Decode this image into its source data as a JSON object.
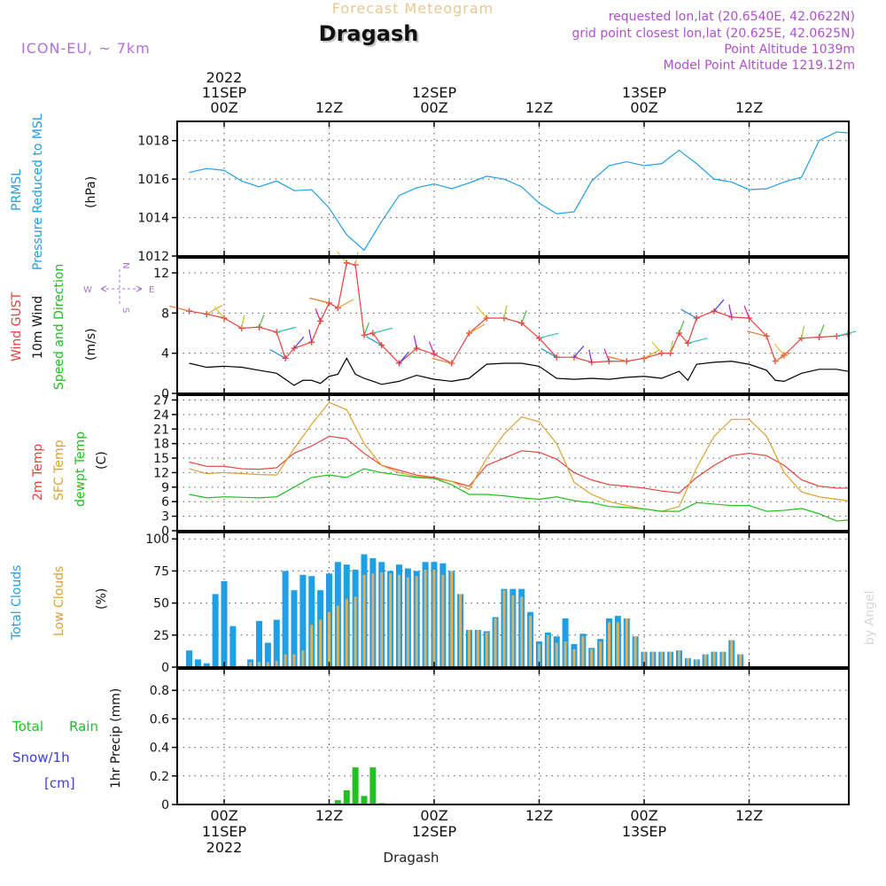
{
  "header": {
    "subtitle": "Forecast Meteogram",
    "location": "Dragash",
    "model": "ICON-EU, ~ 7km",
    "requested": "requested lon,lat (20.6540E, 42.0622N)",
    "grid": "grid point closest lon,lat (20.625E, 42.0625N)",
    "altitude": "Point Altitude 1039m",
    "model_altitude": "Model Point Altitude 1219.12m",
    "footer": "Dragash",
    "watermark": "by Angel"
  },
  "time_axis": {
    "top": [
      [
        "2022",
        "11SEP",
        "00Z"
      ],
      [
        "12Z"
      ],
      [
        "12SEP",
        "00Z"
      ],
      [
        "12Z"
      ],
      [
        "13SEP",
        "00Z"
      ],
      [
        "12Z"
      ]
    ],
    "bottom": [
      [
        "00Z",
        "11SEP",
        "2022"
      ],
      [
        "12Z"
      ],
      [
        "00Z",
        "12SEP"
      ],
      [
        "12Z"
      ],
      [
        "00Z",
        "13SEP"
      ],
      [
        "12Z"
      ]
    ],
    "tick_hours": [
      0,
      12,
      24,
      36,
      48,
      60
    ]
  },
  "colors": {
    "pressure": "#1f9fe6",
    "gust": "#e8423a",
    "wind": "#000000",
    "temp2m": "#e8423a",
    "sfctemp": "#e0a030",
    "dewpt": "#20c020",
    "total_clouds": "#1f9fe6",
    "low_clouds": "#d8b060",
    "precip": "#22c022",
    "snow_label": "#3a3aee",
    "model_label": "#b070d8",
    "info_label": "#b050d0"
  },
  "panels": {
    "pressure": {
      "labels": [
        "PRMSL",
        "Pressure Reduced to MSL"
      ],
      "unit": "(hPa)"
    },
    "wind": {
      "labels": [
        "Wind GUST",
        "10m Wind",
        "Speed and Direction"
      ],
      "unit": "(m/s)",
      "compass": {
        "n": "N",
        "s": "S",
        "e": "E",
        "w": "W"
      }
    },
    "temp": {
      "labels": [
        "2m Temp",
        "SFC Temp",
        "dewpt Temp"
      ],
      "unit": "(C)"
    },
    "clouds": {
      "labels": [
        "Total Clouds",
        "Low Clouds"
      ],
      "unit": "(%)"
    },
    "precip": {
      "labels": [
        "Total",
        "Rain",
        "Snow/1h",
        "[cm]"
      ],
      "unit": "1hr Precip (mm)"
    }
  },
  "chart_data": [
    {
      "type": "line",
      "id": "pressure",
      "series": [
        {
          "name": "PRMSL",
          "x": [
            -4,
            -2,
            0,
            2,
            4,
            6,
            8,
            10,
            12,
            14,
            16,
            18,
            20,
            22,
            24,
            26,
            28,
            30,
            32,
            34,
            36,
            38,
            40,
            42,
            44,
            46,
            48,
            50,
            52,
            54,
            56,
            58,
            60,
            62,
            64,
            66,
            68,
            70,
            72
          ],
          "values": [
            1016.35,
            1016.55,
            1016.45,
            1015.9,
            1015.6,
            1015.9,
            1015.4,
            1015.45,
            1014.5,
            1013.1,
            1012.3,
            1013.8,
            1015.15,
            1015.55,
            1015.75,
            1015.5,
            1015.8,
            1016.15,
            1016.0,
            1015.6,
            1014.75,
            1014.2,
            1014.3,
            1015.9,
            1016.7,
            1016.9,
            1016.7,
            1016.8,
            1017.5,
            1016.8,
            1016.0,
            1015.85,
            1015.45,
            1015.5,
            1015.85,
            1016.1,
            1018.0,
            1018.45,
            1018.4
          ]
        }
      ],
      "ylim": [
        1012,
        1019
      ],
      "yticks": [
        1012,
        1014,
        1016,
        1018
      ]
    },
    {
      "type": "line",
      "id": "wind",
      "series": [
        {
          "name": "Wind GUST",
          "x": [
            -4,
            -2,
            0,
            2,
            4,
            6,
            7,
            8,
            10,
            11,
            12,
            13,
            14,
            15,
            16,
            17,
            18,
            20,
            22,
            24,
            26,
            28,
            30,
            32,
            34,
            36,
            38,
            40,
            42,
            44,
            46,
            48,
            50,
            51,
            52,
            53,
            54,
            56,
            58,
            60,
            62,
            63,
            64,
            66,
            68,
            70,
            72
          ],
          "values": [
            8.2,
            7.9,
            7.5,
            6.5,
            6.6,
            6.1,
            3.5,
            4.5,
            5.1,
            7.2,
            9.0,
            8.5,
            13.0,
            12.8,
            5.8,
            6.0,
            4.8,
            3.0,
            4.5,
            3.9,
            3.0,
            6.0,
            7.5,
            7.5,
            7.0,
            5.5,
            3.6,
            3.6,
            3.1,
            3.2,
            3.2,
            3.5,
            4.0,
            4.0,
            6.0,
            5.0,
            7.5,
            8.2,
            7.6,
            7.5,
            5.7,
            3.2,
            3.8,
            5.5,
            5.6,
            5.7,
            5.9
          ]
        },
        {
          "name": "10m Wind",
          "x": [
            -4,
            -2,
            0,
            2,
            4,
            6,
            8,
            9,
            10,
            11,
            12,
            13,
            14,
            15,
            16,
            18,
            20,
            22,
            24,
            26,
            28,
            30,
            32,
            34,
            36,
            38,
            40,
            42,
            44,
            46,
            48,
            50,
            52,
            53,
            54,
            56,
            58,
            60,
            62,
            63,
            64,
            66,
            68,
            70,
            72
          ],
          "values": [
            3.0,
            2.6,
            2.7,
            2.6,
            2.3,
            2.0,
            0.8,
            1.3,
            1.3,
            1.0,
            1.7,
            1.9,
            3.5,
            1.9,
            1.5,
            0.9,
            1.2,
            1.8,
            1.4,
            1.2,
            1.5,
            2.9,
            3.0,
            3.0,
            2.7,
            1.5,
            1.4,
            1.5,
            1.4,
            1.6,
            1.7,
            1.5,
            2.2,
            1.3,
            2.9,
            3.1,
            3.2,
            2.9,
            2.3,
            1.3,
            1.2,
            2.0,
            2.4,
            2.4,
            2.2
          ]
        }
      ],
      "ylim": [
        0,
        13.5
      ],
      "yticks": [
        0,
        4,
        8,
        12
      ]
    },
    {
      "type": "line",
      "id": "temp",
      "series": [
        {
          "name": "2m Temp",
          "x": [
            -4,
            -2,
            0,
            2,
            4,
            6,
            8,
            10,
            12,
            14,
            16,
            18,
            20,
            22,
            24,
            26,
            28,
            30,
            32,
            34,
            36,
            38,
            40,
            42,
            44,
            46,
            48,
            50,
            52,
            54,
            56,
            58,
            60,
            62,
            64,
            66,
            68,
            70,
            72
          ],
          "values": [
            14.2,
            13.3,
            13.3,
            12.8,
            12.7,
            13.0,
            16.0,
            17.5,
            19.5,
            19.0,
            16.0,
            13.5,
            12.5,
            11.5,
            11.0,
            10.2,
            9.2,
            13.5,
            15.0,
            16.5,
            16.2,
            14.8,
            12.0,
            10.5,
            9.5,
            9.2,
            8.8,
            8.2,
            7.8,
            11.0,
            13.5,
            15.5,
            16.0,
            15.5,
            13.5,
            10.5,
            9.2,
            8.8,
            8.8
          ]
        },
        {
          "name": "SFC Temp",
          "x": [
            -4,
            -2,
            0,
            2,
            4,
            6,
            8,
            10,
            12,
            14,
            16,
            18,
            20,
            22,
            24,
            26,
            28,
            30,
            32,
            34,
            36,
            38,
            40,
            42,
            44,
            46,
            48,
            50,
            52,
            54,
            56,
            58,
            60,
            62,
            64,
            66,
            68,
            70,
            72
          ],
          "values": [
            12.8,
            11.8,
            12.0,
            11.8,
            11.6,
            11.5,
            17.0,
            22.0,
            26.5,
            25.0,
            18.0,
            13.5,
            12.0,
            11.2,
            10.8,
            10.2,
            8.5,
            15.0,
            20.0,
            23.5,
            22.5,
            18.0,
            10.0,
            7.5,
            6.0,
            5.2,
            4.5,
            4.0,
            5.0,
            13.0,
            19.5,
            23.0,
            23.0,
            19.5,
            12.0,
            8.0,
            7.0,
            6.5,
            6.2
          ]
        },
        {
          "name": "dewpt Temp",
          "x": [
            -4,
            -2,
            0,
            2,
            4,
            6,
            8,
            10,
            12,
            14,
            16,
            18,
            20,
            22,
            24,
            26,
            28,
            30,
            32,
            34,
            36,
            38,
            40,
            42,
            44,
            46,
            48,
            50,
            52,
            54,
            56,
            58,
            60,
            62,
            64,
            66,
            68,
            70,
            72
          ],
          "values": [
            7.5,
            6.8,
            7.0,
            6.9,
            6.8,
            7.0,
            9.0,
            11.0,
            11.5,
            11.0,
            12.8,
            12.0,
            11.5,
            11.0,
            10.8,
            9.5,
            7.5,
            7.5,
            7.2,
            6.8,
            6.5,
            7.0,
            6.2,
            5.8,
            5.0,
            4.8,
            4.5,
            4.0,
            4.0,
            5.8,
            5.5,
            5.2,
            5.2,
            4.0,
            4.2,
            4.6,
            3.5,
            2.0,
            2.2
          ]
        }
      ],
      "ylim": [
        0,
        28
      ],
      "yticks": [
        0,
        3,
        6,
        9,
        12,
        15,
        18,
        21,
        24,
        27
      ]
    },
    {
      "type": "bar",
      "id": "clouds",
      "x_start": -4,
      "x_step": 1,
      "series": [
        {
          "name": "Total Clouds",
          "values": [
            13,
            6,
            3,
            57,
            67,
            32,
            1,
            6,
            36,
            19,
            37,
            75,
            60,
            72,
            71,
            60,
            73,
            82,
            80,
            76,
            88,
            85,
            82,
            75,
            80,
            77,
            75,
            82,
            82,
            81,
            75,
            57,
            29,
            29,
            28,
            39,
            61,
            61,
            61,
            43,
            20,
            27,
            24,
            38,
            18,
            26,
            15,
            22,
            38,
            40,
            38,
            24,
            12,
            12,
            12,
            12,
            13,
            7,
            6,
            10,
            12,
            12,
            21,
            10,
            0.5,
            0.5,
            0.5,
            0.5,
            0.5,
            0.5,
            0.5,
            0.5,
            0.5,
            0.5,
            0.5,
            0.5,
            0.5
          ]
        },
        {
          "name": "Low Clouds",
          "values": [
            0,
            0,
            0,
            0,
            0,
            0,
            1,
            4,
            4,
            4,
            5,
            10,
            10,
            13,
            33,
            37,
            43,
            48,
            53,
            55,
            72,
            73,
            74,
            73,
            72,
            70,
            71,
            76,
            76,
            72,
            75,
            57,
            29,
            29,
            27,
            38,
            60,
            56,
            55,
            40,
            18,
            25,
            19,
            20,
            14,
            24,
            14,
            20,
            35,
            35,
            38,
            24,
            12,
            12,
            12,
            12,
            13,
            7,
            6,
            10,
            12,
            12,
            21,
            10,
            0.5,
            0.5,
            0.5,
            0.5,
            0.5,
            0.5,
            0.5,
            0.5,
            0.5,
            0.5,
            0.5,
            0.5,
            0.5
          ]
        }
      ],
      "ylim": [
        0,
        105
      ],
      "yticks": [
        0,
        25,
        50,
        75,
        100
      ]
    },
    {
      "type": "bar",
      "id": "precip",
      "series": [
        {
          "name": "1hr Precip",
          "x": [
            11,
            12,
            13,
            14,
            15,
            16,
            17,
            18
          ],
          "values": [
            0.004,
            0.006,
            0.03,
            0.1,
            0.26,
            0.06,
            0.26,
            0.01
          ]
        }
      ],
      "ylim": [
        0,
        0.95
      ],
      "yticks": [
        0,
        0.2,
        0.4,
        0.6,
        0.8
      ]
    }
  ]
}
